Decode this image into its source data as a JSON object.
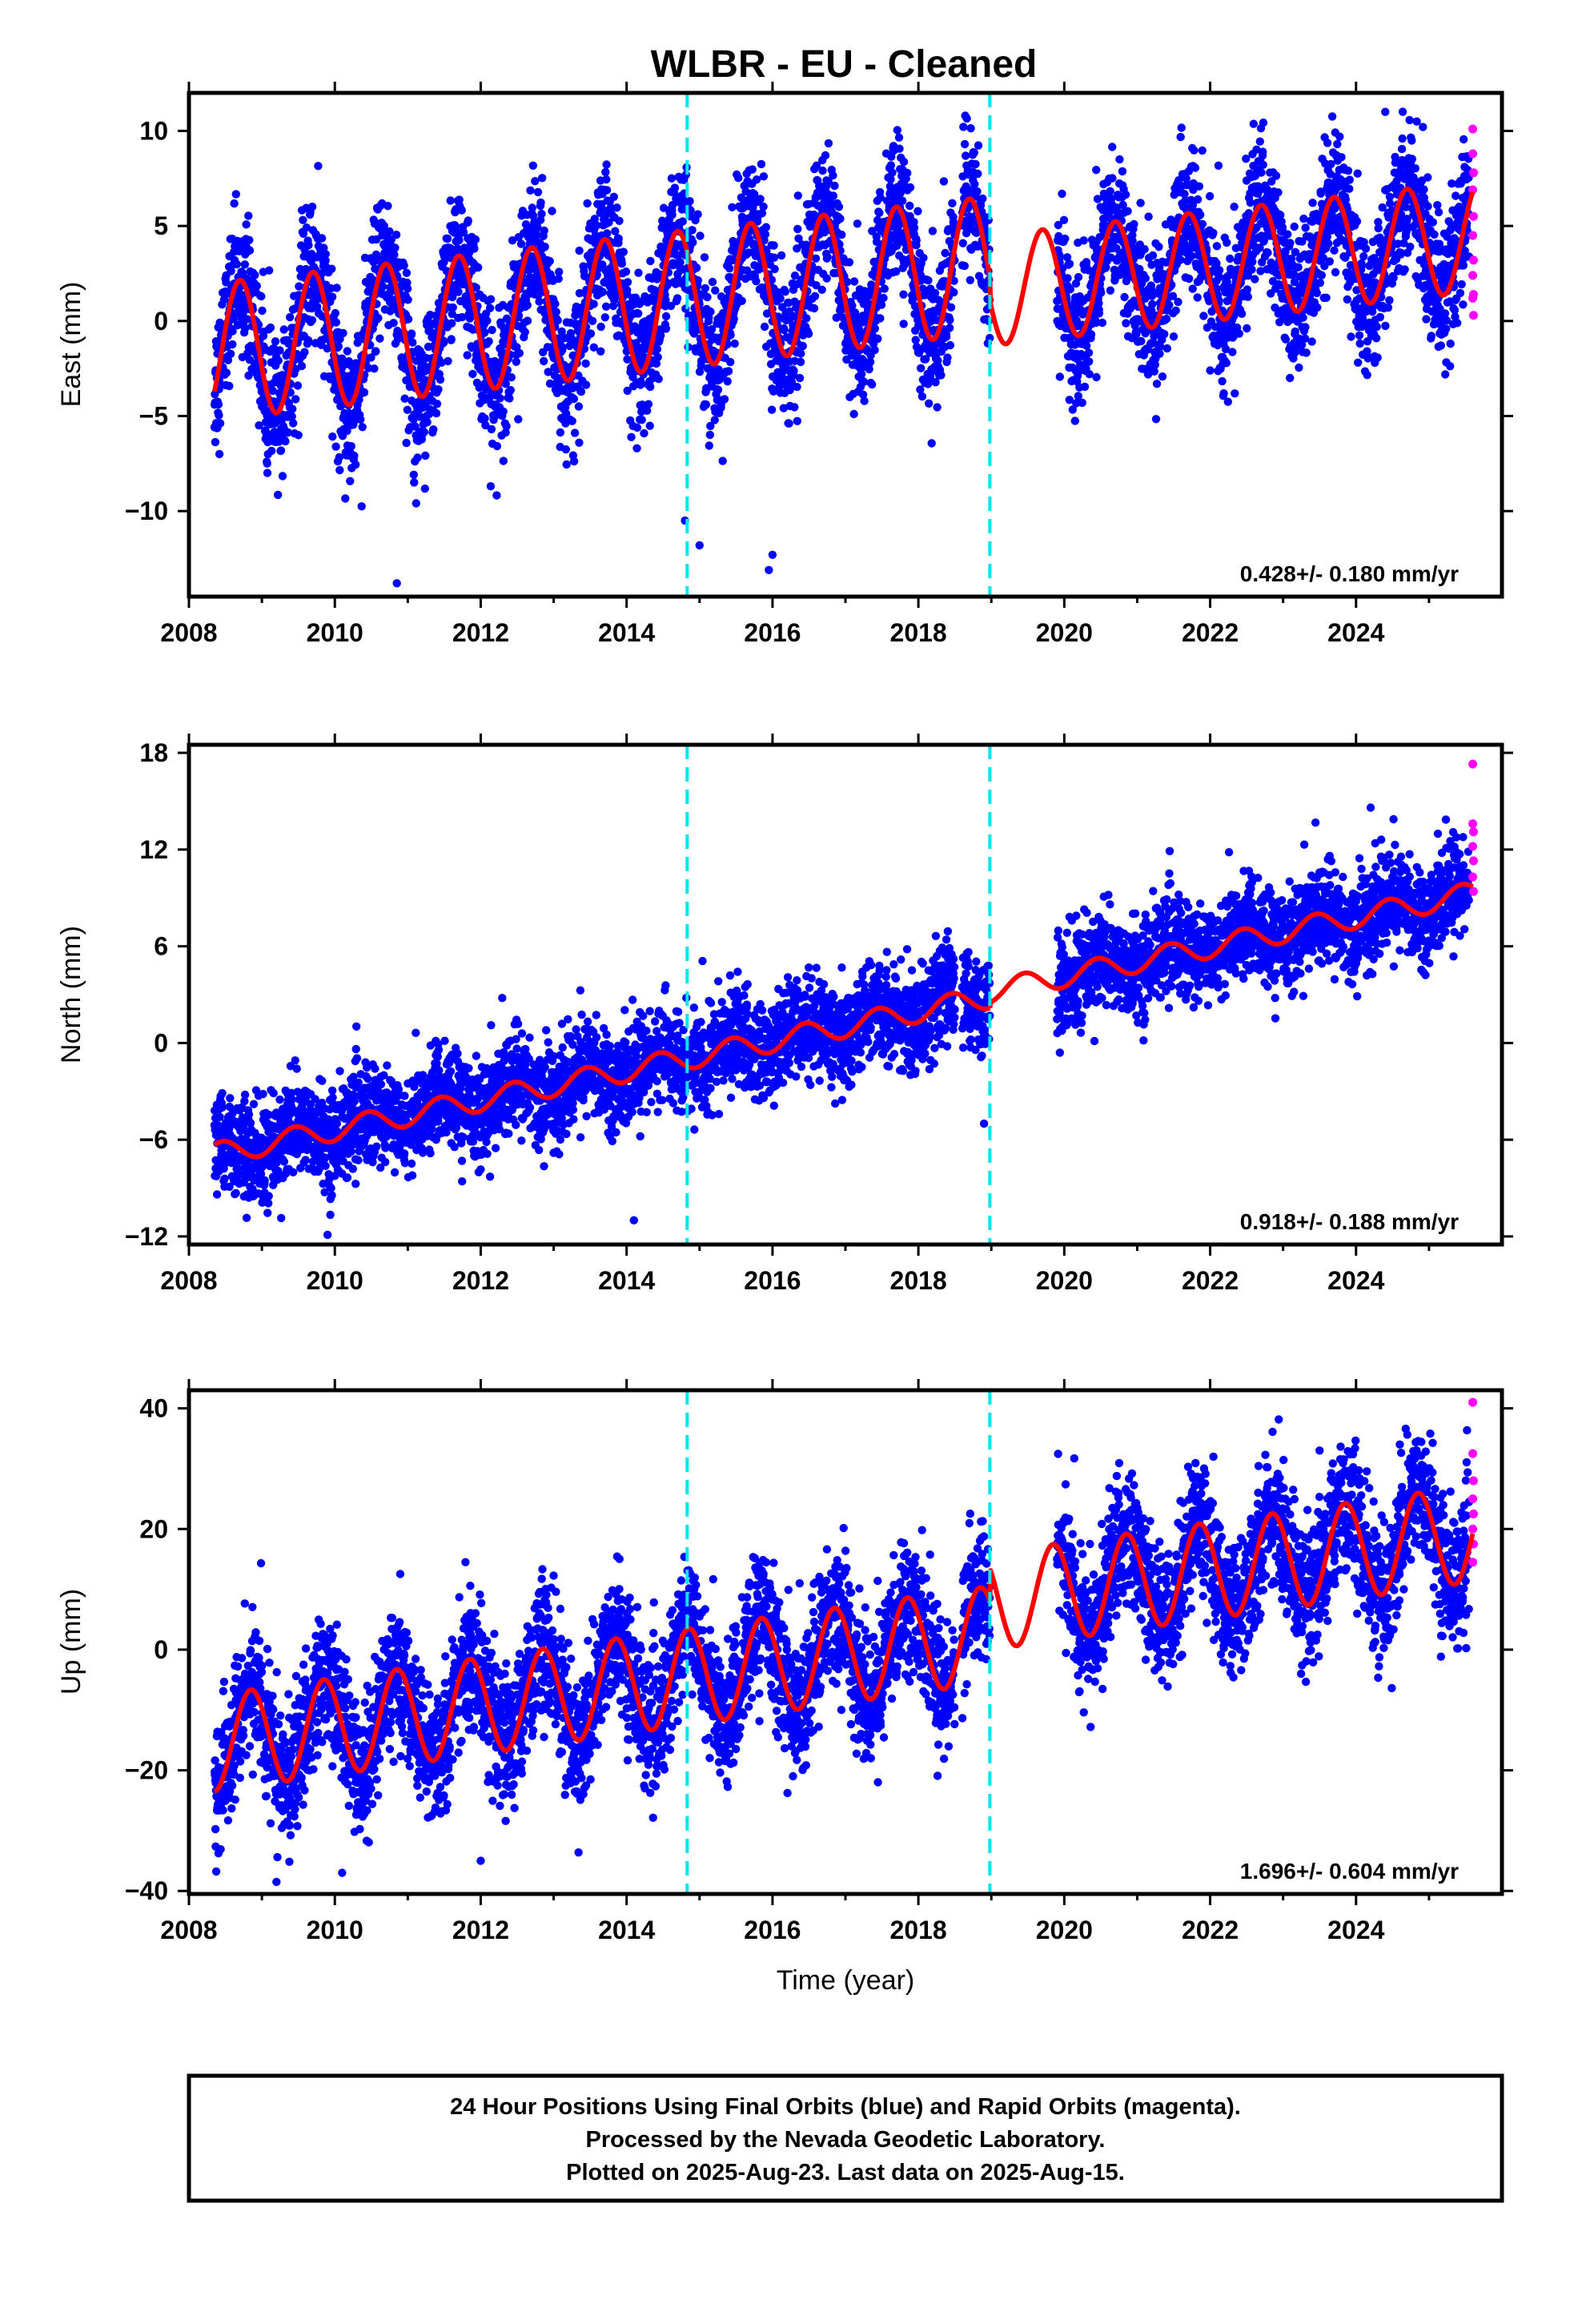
{
  "title": "WLBR  - EU - Cleaned",
  "xlabel": "Time (year)",
  "x_ticks": [
    2008,
    2010,
    2012,
    2014,
    2016,
    2018,
    2020,
    2022,
    2024
  ],
  "xlim": [
    2008.0,
    2026.0
  ],
  "offset_lines": [
    2014.83,
    2018.98
  ],
  "colors": {
    "final_orbits": "#0000ff",
    "rapid_orbits": "#ff00ff",
    "model": "#ff0000",
    "offsets": "#00e5ee",
    "frame": "#000000"
  },
  "footer": {
    "line1": "24 Hour Positions Using Final Orbits (blue) and Rapid Orbits (magenta).",
    "line2": "Processed by the Nevada Geodetic Laboratory.",
    "line3": "Plotted on 2025-Aug-23. Last data on 2025-Aug-15."
  },
  "chart_data": [
    {
      "type": "scatter",
      "component": "east",
      "ylabel": "East (mm)",
      "rate_label": "0.428+/- 0.180 mm/yr",
      "ylim": [
        -14.5,
        12.0
      ],
      "y_ticks": [
        -10,
        -5,
        0,
        5,
        10
      ],
      "series": [
        {
          "kind": "final_orbits",
          "time_span": [
            2008.35,
            2025.55
          ],
          "scatter_mm": 1.8
        },
        {
          "kind": "rapid_orbits",
          "time_span": [
            2025.55,
            2025.62
          ],
          "points": [
            [
              2025.6,
              10.1
            ],
            [
              2025.6,
              8.8
            ],
            [
              2025.61,
              7.8
            ],
            [
              2025.6,
              6.9
            ],
            [
              2025.61,
              5.5
            ],
            [
              2025.6,
              4.5
            ],
            [
              2025.61,
              3.2
            ],
            [
              2025.6,
              2.4
            ],
            [
              2025.61,
              1.4
            ],
            [
              2025.6,
              1.2
            ],
            [
              2025.61,
              0.3
            ]
          ]
        },
        {
          "kind": "model",
          "time_span": [
            2008.35,
            2025.6
          ],
          "gaps": [
            [
              2008.35,
              2018.98,
              -1.6,
              0.428,
              3.6,
              0.45
            ],
            [
              2018.98,
              2025.6,
              1.6,
              0.428,
              2.9,
              0.45
            ]
          ]
        }
      ],
      "extreme_points": [
        [
          2010.85,
          -13.8
        ],
        [
          2014.8,
          -10.5
        ],
        [
          2015.0,
          -11.8
        ],
        [
          2015.95,
          -13.1
        ],
        [
          2016.0,
          -12.3
        ],
        [
          2024.4,
          11.0
        ]
      ]
    },
    {
      "type": "scatter",
      "component": "north",
      "ylabel": "North (mm)",
      "rate_label": "0.918+/- 0.188 mm/yr",
      "ylim": [
        -12.5,
        18.5
      ],
      "y_ticks": [
        -12,
        -6,
        0,
        6,
        12,
        18
      ],
      "series": [
        {
          "kind": "final_orbits",
          "time_span": [
            2008.35,
            2025.55
          ],
          "scatter_mm": 1.5
        },
        {
          "kind": "rapid_orbits",
          "time_span": [
            2025.55,
            2025.62
          ],
          "points": [
            [
              2025.6,
              17.3
            ],
            [
              2025.6,
              13.6
            ],
            [
              2025.61,
              13.1
            ],
            [
              2025.6,
              12.2
            ],
            [
              2025.61,
              11.3
            ],
            [
              2025.6,
              10.3
            ],
            [
              2025.61,
              9.4
            ]
          ]
        },
        {
          "kind": "model",
          "time_span": [
            2008.35,
            2025.6
          ],
          "gaps": [
            [
              2008.35,
              2018.98,
              -6.9,
              0.918,
              0.7,
              0.2
            ],
            [
              2018.98,
              2025.6,
              3.2,
              0.918,
              0.7,
              0.2
            ]
          ]
        }
      ],
      "extreme_points": [
        [
          2009.9,
          -11.9
        ],
        [
          2014.1,
          -11.0
        ],
        [
          2024.2,
          14.6
        ],
        [
          2018.9,
          -5.0
        ]
      ]
    },
    {
      "type": "scatter",
      "component": "up",
      "ylabel": "Up (mm)",
      "rate_label": "1.696+/- 0.604 mm/yr",
      "ylim": [
        -40.5,
        43.0
      ],
      "y_ticks": [
        -40,
        -20,
        0,
        20,
        40
      ],
      "series": [
        {
          "kind": "final_orbits",
          "time_span": [
            2008.35,
            2025.55
          ],
          "scatter_mm": 5.5
        },
        {
          "kind": "rapid_orbits",
          "time_span": [
            2025.55,
            2025.62
          ],
          "points": [
            [
              2025.6,
              41.0
            ],
            [
              2025.6,
              32.5
            ],
            [
              2025.61,
              28.0
            ],
            [
              2025.6,
              25.0
            ],
            [
              2025.61,
              22.5
            ],
            [
              2025.6,
              20.0
            ],
            [
              2025.61,
              17.5
            ],
            [
              2025.6,
              14.5
            ]
          ]
        },
        {
          "kind": "model",
          "time_span": [
            2008.35,
            2025.6
          ],
          "gaps": [
            [
              2008.35,
              2018.98,
              -15.5,
              1.696,
              8.0,
              0.6
            ],
            [
              2018.98,
              2025.6,
              8.0,
              1.696,
              8.0,
              0.6
            ]
          ]
        }
      ],
      "extreme_points": [
        [
          2009.2,
          -38.5
        ],
        [
          2010.1,
          -37.0
        ],
        [
          2012.0,
          -35.0
        ],
        [
          2024.6,
          34.0
        ],
        [
          2023.5,
          33.0
        ]
      ]
    }
  ]
}
